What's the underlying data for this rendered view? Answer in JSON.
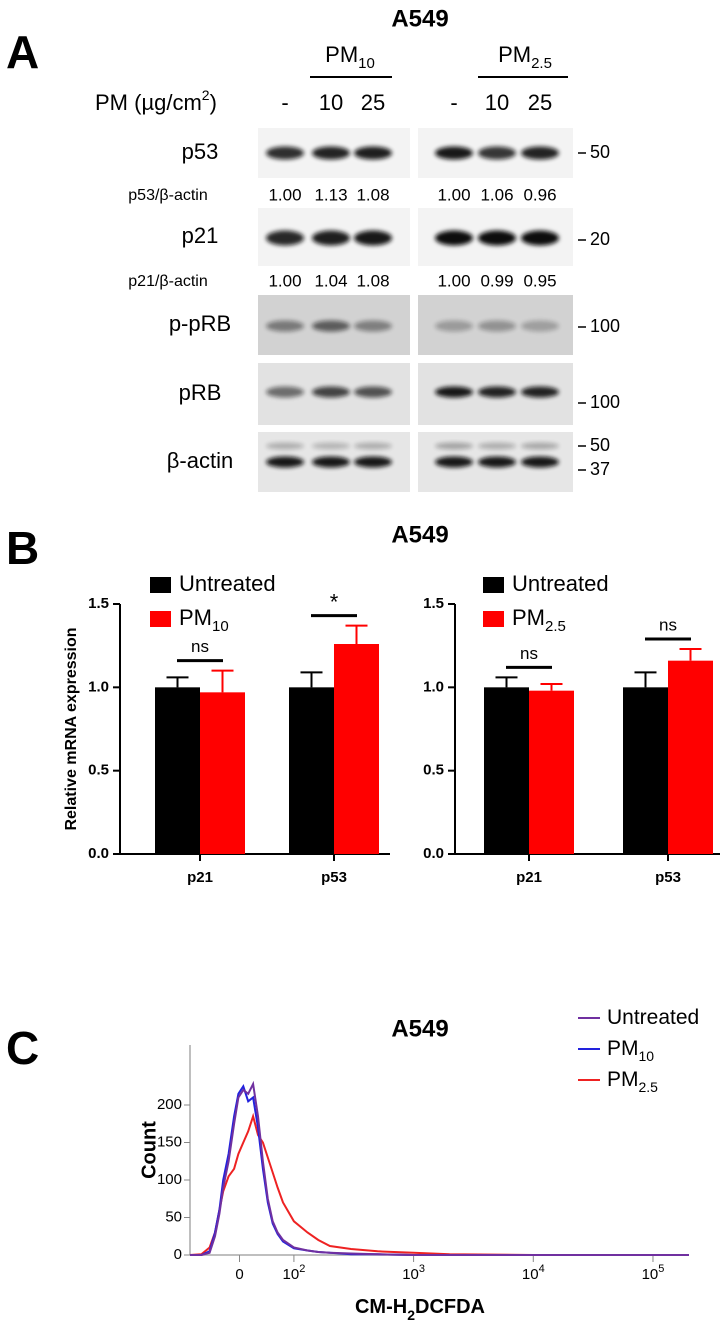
{
  "panel_a": {
    "label": "A",
    "title": "A549",
    "groups": [
      {
        "name": "PM",
        "sub": "10"
      },
      {
        "name": "PM",
        "sub": "2.5"
      }
    ],
    "dose_label": [
      "PM (µg/cm",
      "2",
      ")"
    ],
    "doses": [
      "-",
      "10",
      "25",
      "-",
      "10",
      "25"
    ],
    "blots": [
      {
        "name": "p53",
        "markers": [
          "50"
        ]
      },
      {
        "name": "p21",
        "markers": [
          "20"
        ]
      },
      {
        "name": "p-pRB",
        "markers": [
          "100"
        ]
      },
      {
        "name": "pRB",
        "markers": [
          "100"
        ]
      },
      {
        "name": "β-actin",
        "markers": [
          "50",
          "37"
        ]
      }
    ],
    "ratios": [
      {
        "name": "p53/β-actin",
        "values": [
          "1.00",
          "1.13",
          "1.08",
          "1.00",
          "1.06",
          "0.96"
        ]
      },
      {
        "name": "p21/β-actin",
        "values": [
          "1.00",
          "1.04",
          "1.08",
          "1.00",
          "0.99",
          "0.95"
        ]
      }
    ]
  },
  "panel_b": {
    "label": "B",
    "title": "A549"
  },
  "panel_c": {
    "label": "C"
  },
  "chart_data": [
    {
      "type": "bar",
      "ylabel": "Relative mRNA expression",
      "categories": [
        "p21",
        "p53"
      ],
      "series": [
        {
          "name": "Untreated",
          "color": "#000000",
          "values": [
            1.0,
            1.0
          ],
          "errors": [
            0.06,
            0.09
          ]
        },
        {
          "name": "PM",
          "name_sub": "10",
          "color": "#ff0000",
          "values": [
            0.97,
            1.26
          ],
          "errors": [
            0.13,
            0.11
          ]
        }
      ],
      "ylim": [
        0,
        1.5
      ],
      "yticks": [
        {
          "value": 0,
          "label": "0.0"
        },
        0.5,
        {
          "value": 1,
          "label": "1.0"
        },
        1.5
      ],
      "annotations": [
        {
          "text": "ns",
          "category": 0
        },
        {
          "text": "*",
          "category": 1
        }
      ]
    },
    {
      "type": "bar",
      "categories": [
        "p21",
        "p53"
      ],
      "series": [
        {
          "name": "Untreated",
          "color": "#000000",
          "values": [
            1.0,
            1.0
          ],
          "errors": [
            0.06,
            0.09
          ]
        },
        {
          "name": "PM",
          "name_sub": "2.5",
          "color": "#ff0000",
          "values": [
            0.98,
            1.16
          ],
          "errors": [
            0.04,
            0.07
          ]
        }
      ],
      "ylim": [
        0,
        1.5
      ],
      "yticks": [
        {
          "value": 0,
          "label": "0.0"
        },
        0.5,
        {
          "value": 1,
          "label": "1.0"
        },
        1.5
      ],
      "annotations": [
        {
          "text": "ns",
          "category": 0
        },
        {
          "text": "ns",
          "category": 1
        }
      ]
    },
    {
      "type": "line",
      "title": "A549",
      "xlabel": [
        "CM-H",
        "2",
        "DCFDA"
      ],
      "ylabel": "Count",
      "xscale": "biexponential",
      "linear_below": 100,
      "xlim": [
        -91,
        200000
      ],
      "xticks": [
        0,
        {
          "value": 100,
          "label": "10",
          "sup": "2"
        },
        {
          "value": 1000,
          "label": "10",
          "sup": "3"
        },
        {
          "value": 10000,
          "label": "10",
          "sup": "4"
        },
        {
          "value": 100000,
          "label": "10",
          "sup": "5"
        }
      ],
      "ylim": [
        0,
        280
      ],
      "yticks": [
        0,
        50,
        100,
        150,
        200
      ],
      "x": [
        -91,
        -70,
        -55,
        -45,
        -37,
        -30,
        -20,
        -10,
        -2,
        7,
        16,
        25,
        34,
        43,
        52,
        61,
        70,
        80,
        100,
        130,
        160,
        200,
        300,
        500,
        1000,
        2000,
        10000,
        200000
      ],
      "series": [
        {
          "name": "Untreated",
          "color": "#7030a0",
          "values": [
            0,
            0,
            3,
            25,
            55,
            90,
            125,
            175,
            210,
            220,
            215,
            228,
            185,
            125,
            75,
            45,
            30,
            20,
            10,
            6,
            4,
            3,
            2,
            1,
            0,
            0,
            0,
            0
          ]
        },
        {
          "name": "PM",
          "name_sub": "10",
          "color": "#2222dd",
          "values": [
            0,
            0,
            5,
            30,
            60,
            100,
            135,
            185,
            215,
            225,
            205,
            210,
            170,
            115,
            70,
            42,
            28,
            18,
            9,
            6,
            4,
            3,
            1,
            1,
            0,
            0,
            0,
            0
          ]
        },
        {
          "name": "PM",
          "name_sub": "2.5",
          "color": "#ee2222",
          "values": [
            0,
            1,
            10,
            30,
            60,
            85,
            105,
            115,
            135,
            150,
            165,
            185,
            160,
            150,
            130,
            110,
            90,
            70,
            45,
            30,
            20,
            12,
            8,
            5,
            3,
            1,
            0,
            0
          ]
        }
      ]
    }
  ]
}
